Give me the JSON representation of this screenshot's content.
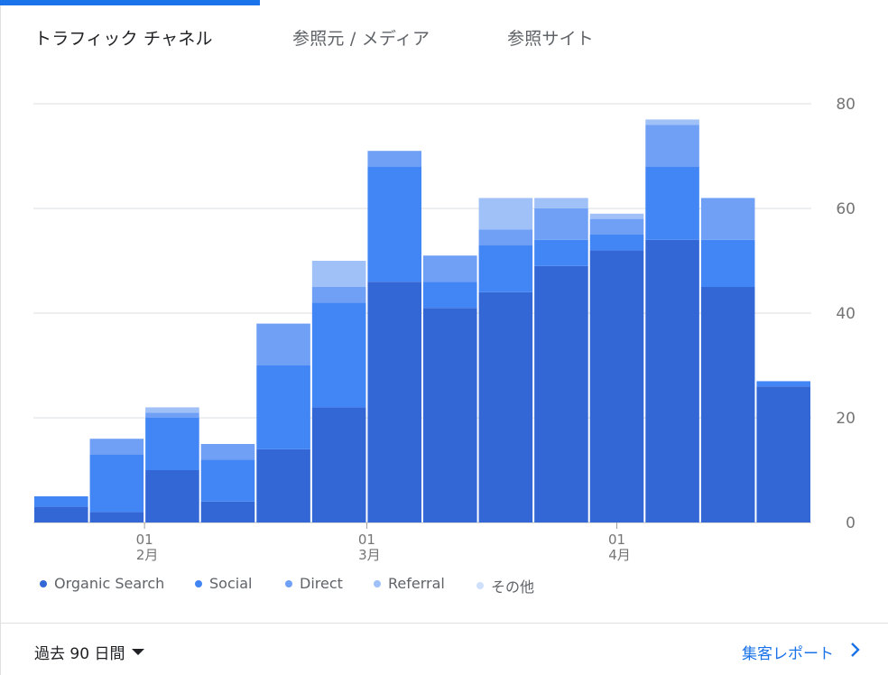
{
  "tabs": [
    {
      "label": "トラフィック チャネル",
      "active": true
    },
    {
      "label": "参照元 / メディア",
      "active": false
    },
    {
      "label": "参照サイト",
      "active": false
    }
  ],
  "colors": {
    "accent": "#1a73e8",
    "series": [
      "#3367d6",
      "#4285f4",
      "#6fa0f5",
      "#a0c0f8",
      "#cfe0fc"
    ]
  },
  "chart_data": {
    "type": "bar",
    "stacked": true,
    "ylim": [
      0,
      80
    ],
    "yticks": [
      0,
      20,
      40,
      60,
      80
    ],
    "y_axis_side": "right",
    "grid": true,
    "bar_count": 14,
    "x_tick_marks": [
      {
        "index": 2,
        "day": "01",
        "month": "2月"
      },
      {
        "index": 6,
        "day": "01",
        "month": "3月"
      },
      {
        "index": 10.5,
        "day": "01",
        "month": "4月"
      }
    ],
    "series": [
      {
        "name": "Organic Search",
        "values": [
          3,
          2,
          10,
          4,
          14,
          22,
          46,
          41,
          44,
          49,
          52,
          54,
          45,
          26
        ]
      },
      {
        "name": "Social",
        "values": [
          2,
          11,
          10,
          8,
          16,
          20,
          22,
          5,
          9,
          5,
          3,
          14,
          9,
          1
        ]
      },
      {
        "name": "Direct",
        "values": [
          0,
          3,
          1,
          3,
          8,
          3,
          3,
          5,
          3,
          6,
          3,
          8,
          8,
          0
        ]
      },
      {
        "name": "Referral",
        "values": [
          0,
          0,
          1,
          0,
          0,
          5,
          0,
          0,
          6,
          2,
          1,
          1,
          0,
          0
        ]
      },
      {
        "name": "その他",
        "values": [
          0,
          0,
          0,
          0,
          0,
          0,
          0,
          0,
          0,
          0,
          0,
          0,
          0,
          0
        ]
      }
    ],
    "legend_position": "bottom-left"
  },
  "footer": {
    "range_label": "過去 90 日間",
    "report_link": "集客レポート"
  },
  "icons": {
    "range_caret": "caret-down-icon",
    "report_chevron": "chevron-right-icon"
  }
}
